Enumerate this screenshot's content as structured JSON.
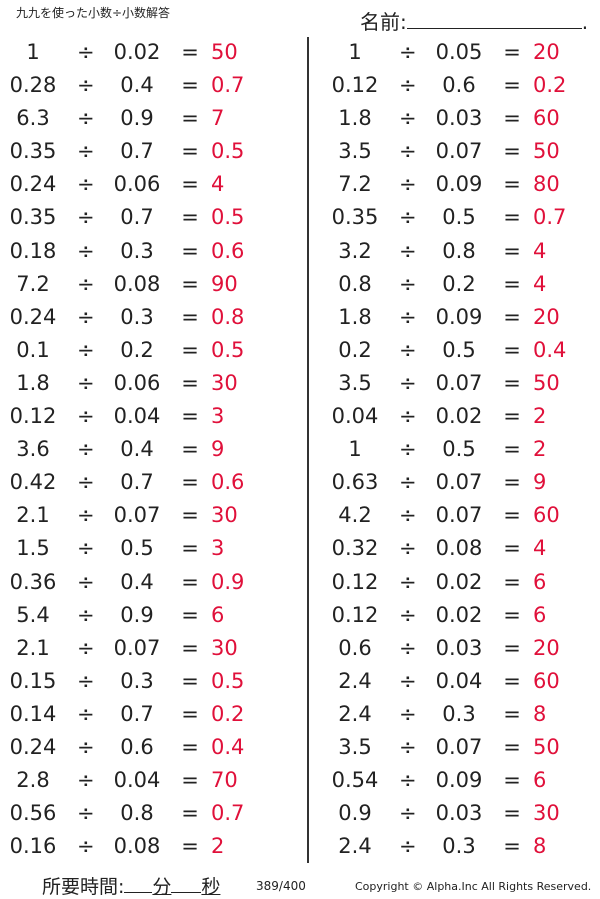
{
  "title": "九九を使った小数÷小数解答",
  "name_label": "名前:",
  "name_dot": ".",
  "operator": "÷",
  "equals": "=",
  "colors": {
    "answer": "#e0103a"
  },
  "left_problems": [
    [
      "1",
      "0.02",
      "50"
    ],
    [
      "0.28",
      "0.4",
      "0.7"
    ],
    [
      "6.3",
      "0.9",
      "7"
    ],
    [
      "0.35",
      "0.7",
      "0.5"
    ],
    [
      "0.24",
      "0.06",
      "4"
    ],
    [
      "0.35",
      "0.7",
      "0.5"
    ],
    [
      "0.18",
      "0.3",
      "0.6"
    ],
    [
      "7.2",
      "0.08",
      "90"
    ],
    [
      "0.24",
      "0.3",
      "0.8"
    ],
    [
      "0.1",
      "0.2",
      "0.5"
    ],
    [
      "1.8",
      "0.06",
      "30"
    ],
    [
      "0.12",
      "0.04",
      "3"
    ],
    [
      "3.6",
      "0.4",
      "9"
    ],
    [
      "0.42",
      "0.7",
      "0.6"
    ],
    [
      "2.1",
      "0.07",
      "30"
    ],
    [
      "1.5",
      "0.5",
      "3"
    ],
    [
      "0.36",
      "0.4",
      "0.9"
    ],
    [
      "5.4",
      "0.9",
      "6"
    ],
    [
      "2.1",
      "0.07",
      "30"
    ],
    [
      "0.15",
      "0.3",
      "0.5"
    ],
    [
      "0.14",
      "0.7",
      "0.2"
    ],
    [
      "0.24",
      "0.6",
      "0.4"
    ],
    [
      "2.8",
      "0.04",
      "70"
    ],
    [
      "0.56",
      "0.8",
      "0.7"
    ],
    [
      "0.16",
      "0.08",
      "2"
    ]
  ],
  "right_problems": [
    [
      "1",
      "0.05",
      "20"
    ],
    [
      "0.12",
      "0.6",
      "0.2"
    ],
    [
      "1.8",
      "0.03",
      "60"
    ],
    [
      "3.5",
      "0.07",
      "50"
    ],
    [
      "7.2",
      "0.09",
      "80"
    ],
    [
      "0.35",
      "0.5",
      "0.7"
    ],
    [
      "3.2",
      "0.8",
      "4"
    ],
    [
      "0.8",
      "0.2",
      "4"
    ],
    [
      "1.8",
      "0.09",
      "20"
    ],
    [
      "0.2",
      "0.5",
      "0.4"
    ],
    [
      "3.5",
      "0.07",
      "50"
    ],
    [
      "0.04",
      "0.02",
      "2"
    ],
    [
      "1",
      "0.5",
      "2"
    ],
    [
      "0.63",
      "0.07",
      "9"
    ],
    [
      "4.2",
      "0.07",
      "60"
    ],
    [
      "0.32",
      "0.08",
      "4"
    ],
    [
      "0.12",
      "0.02",
      "6"
    ],
    [
      "0.12",
      "0.02",
      "6"
    ],
    [
      "0.6",
      "0.03",
      "20"
    ],
    [
      "2.4",
      "0.04",
      "60"
    ],
    [
      "2.4",
      "0.3",
      "8"
    ],
    [
      "3.5",
      "0.07",
      "50"
    ],
    [
      "0.54",
      "0.09",
      "6"
    ],
    [
      "0.9",
      "0.03",
      "30"
    ],
    [
      "2.4",
      "0.3",
      "8"
    ]
  ],
  "footer": {
    "time_label": "所要時間:",
    "minutes": "分",
    "seconds": "秒",
    "page": "389/400",
    "copyright": "Copyright © Alpha.Inc All Rights Reserved."
  }
}
